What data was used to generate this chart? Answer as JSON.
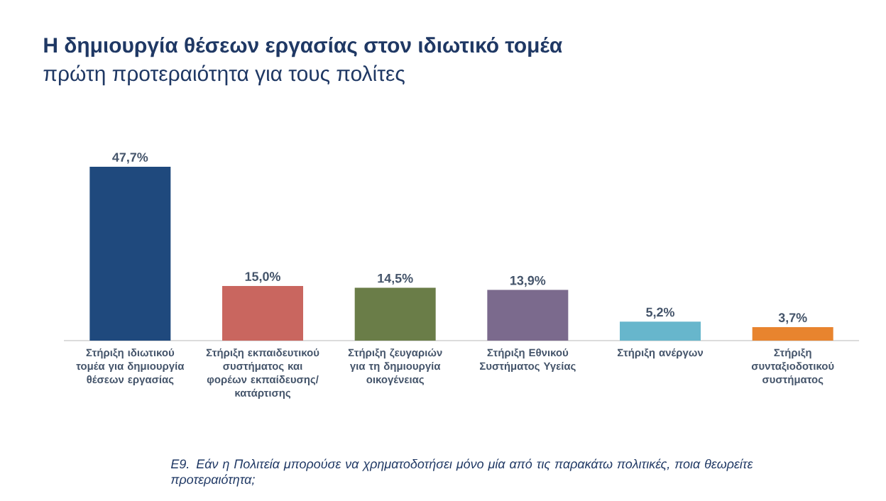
{
  "chart_data": {
    "type": "bar",
    "title": "Η δημιουργία θέσεων εργασίας στον ιδιωτικό τομέα",
    "subtitle": "πρώτη προτεραιότητα για τους πολίτες",
    "categories": [
      "Στήριξη ιδιωτικού τομέα για δημιουργία θέσεων εργασίας",
      "Στήριξη εκπαιδευτικού συστήματος και φορέων εκπαίδευσης/ κατάρτισης",
      "Στήριξη ζευγαριών για τη δημιουργία οικογένειας",
      "Στήριξη Εθνικού Συστήματος Υγείας",
      "Στήριξη ανέργων",
      "Στήριξη συνταξιοδοτικού συστήματος"
    ],
    "values": [
      47.7,
      15.0,
      14.5,
      13.9,
      5.2,
      3.7
    ],
    "value_labels": [
      "47,7%",
      "15,0%",
      "14,5%",
      "13,9%",
      "5,2%",
      "3,7%"
    ],
    "colors": [
      "#1f497d",
      "#c9665f",
      "#6a7d48",
      "#7b6a8d",
      "#67b6cc",
      "#e8842e"
    ],
    "annotations": [
      "Ε9. Εάν η Πολιτεία μπορούσε να χρηματοδοτήσει μόνο μία από τις παρακάτω πολιτικές, ποια θεωρείτε προτεραιότητα;"
    ]
  }
}
